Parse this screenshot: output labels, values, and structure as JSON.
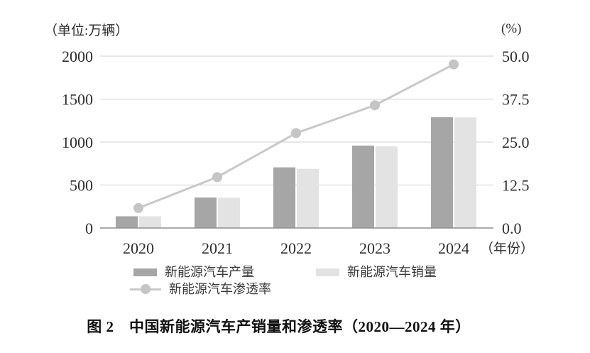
{
  "chart_data": {
    "type": "bar-line-combo",
    "title": "图 2　中国新能源汽车产销量和渗透率（2020—2024 年）",
    "categories": [
      "2020",
      "2021",
      "2022",
      "2023",
      "2024"
    ],
    "bar_series": [
      {
        "name": "新能源汽车产量",
        "values": [
          136.6,
          354.5,
          705.8,
          958.7,
          1288.8
        ],
        "color": "#a6a6a6"
      },
      {
        "name": "新能源汽车销量",
        "values": [
          136.7,
          352.1,
          688.7,
          949.5,
          1286.6
        ],
        "color": "#e3e3e3"
      }
    ],
    "line_series": [
      {
        "name": "新能源汽车渗透率",
        "values": [
          5.8,
          14.8,
          27.6,
          35.7,
          47.6
        ],
        "axis": "right",
        "color": "#c9c9c9",
        "marker_color": "#c5c5c5"
      }
    ],
    "left_axis": {
      "label": "（单位:万辆）",
      "ticks": [
        "0",
        "500",
        "1000",
        "1500",
        "2000"
      ],
      "range": [
        0,
        2000
      ]
    },
    "right_axis": {
      "label": "(%)",
      "ticks": [
        "0.0",
        "12.5",
        "25.0",
        "37.5",
        "50.0"
      ],
      "range": [
        0,
        50
      ]
    },
    "x_axis_suffix": "（年份）",
    "grid": "horizontal",
    "legend_position": "bottom",
    "colors": {
      "gridline": "#cfcfcf",
      "baseline": "#8f8f8f",
      "text": "#2d2d2d"
    }
  }
}
